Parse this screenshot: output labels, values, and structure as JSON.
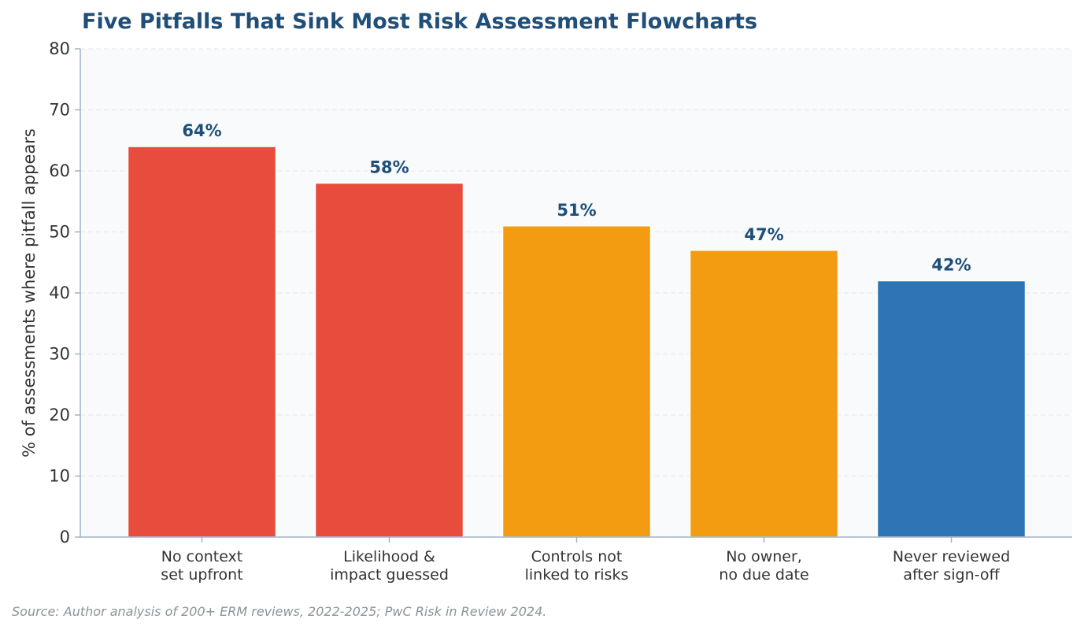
{
  "chart_data": {
    "type": "bar",
    "title": "Five Pitfalls That Sink Most Risk Assessment Flowcharts",
    "ylabel": "% of assessments where pitfall appears",
    "xlabel": "",
    "ylim": [
      0,
      80
    ],
    "yticks": [
      "0",
      "10",
      "20",
      "30",
      "40",
      "50",
      "60",
      "70",
      "80"
    ],
    "grid": true,
    "categories": [
      [
        "No context",
        "set upfront"
      ],
      [
        "Likelihood &",
        "impact guessed"
      ],
      [
        "Controls not",
        "linked to risks"
      ],
      [
        "No owner,",
        "no due date"
      ],
      [
        "Never reviewed",
        "after sign-off"
      ]
    ],
    "values": [
      64,
      58,
      51,
      47,
      42
    ],
    "value_labels": [
      "64%",
      "58%",
      "51%",
      "47%",
      "42%"
    ],
    "colors": [
      "#e74c3c",
      "#e74c3c",
      "#f39c12",
      "#f39c12",
      "#2e75b6"
    ],
    "source": "Source: Author analysis of 200+ ERM reviews, 2022-2025; PwC Risk in Review 2024."
  }
}
